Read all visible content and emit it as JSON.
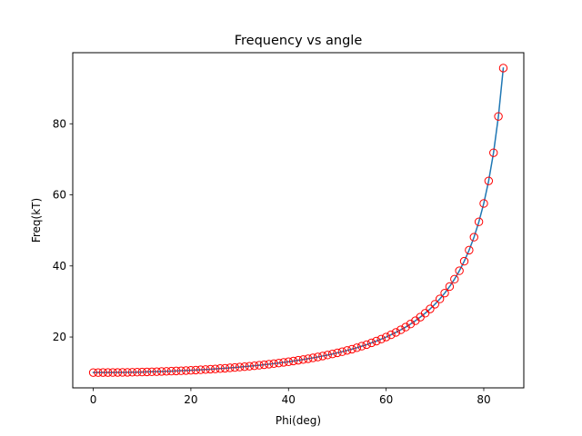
{
  "chart_data": {
    "type": "line",
    "title": "Frequency vs angle",
    "xlabel": "Phi(deg)",
    "ylabel": "Freq(kT)",
    "xlim": [
      -4.2,
      88.2
    ],
    "ylim": [
      5.7,
      100.0
    ],
    "xticks": [
      0,
      20,
      40,
      60,
      80
    ],
    "yticks": [
      20,
      40,
      60,
      80
    ],
    "grid": false,
    "series": [
      {
        "style": "line",
        "color": "#1f77b4",
        "x": [
          0,
          1,
          2,
          3,
          4,
          5,
          6,
          7,
          8,
          9,
          10,
          11,
          12,
          13,
          14,
          15,
          16,
          17,
          18,
          19,
          20,
          21,
          22,
          23,
          24,
          25,
          26,
          27,
          28,
          29,
          30,
          31,
          32,
          33,
          34,
          35,
          36,
          37,
          38,
          39,
          40,
          41,
          42,
          43,
          44,
          45,
          46,
          47,
          48,
          49,
          50,
          51,
          52,
          53,
          54,
          55,
          56,
          57,
          58,
          59,
          60,
          61,
          62,
          63,
          64,
          65,
          66,
          67,
          68,
          69,
          70,
          71,
          72,
          73,
          74,
          75,
          76,
          77,
          78,
          79,
          80,
          81,
          82,
          83,
          84
        ],
        "y": [
          10.0,
          10.0,
          10.01,
          10.01,
          10.02,
          10.04,
          10.05,
          10.07,
          10.1,
          10.12,
          10.15,
          10.19,
          10.22,
          10.26,
          10.31,
          10.35,
          10.4,
          10.46,
          10.51,
          10.58,
          10.64,
          10.71,
          10.79,
          10.87,
          10.95,
          11.03,
          11.13,
          11.22,
          11.33,
          11.43,
          11.55,
          11.66,
          11.79,
          11.92,
          12.06,
          12.21,
          12.36,
          12.52,
          12.69,
          12.87,
          13.05,
          13.25,
          13.46,
          13.67,
          13.9,
          14.14,
          14.39,
          14.66,
          14.94,
          15.23,
          15.56,
          15.87,
          16.23,
          16.59,
          16.99,
          17.43,
          17.86,
          18.36,
          18.86,
          19.42,
          20.0,
          20.63,
          21.3,
          22.03,
          22.8,
          23.66,
          24.59,
          25.6,
          26.7,
          27.9,
          29.24,
          30.72,
          32.36,
          34.2,
          36.28,
          38.64,
          41.33,
          44.45,
          48.1,
          52.41,
          57.59,
          63.92,
          71.85,
          82.07,
          95.67
        ]
      },
      {
        "style": "markers",
        "marker": "circle-open",
        "color": "#ff0000",
        "x": [
          0,
          1,
          2,
          3,
          4,
          5,
          6,
          7,
          8,
          9,
          10,
          11,
          12,
          13,
          14,
          15,
          16,
          17,
          18,
          19,
          20,
          21,
          22,
          23,
          24,
          25,
          26,
          27,
          28,
          29,
          30,
          31,
          32,
          33,
          34,
          35,
          36,
          37,
          38,
          39,
          40,
          41,
          42,
          43,
          44,
          45,
          46,
          47,
          48,
          49,
          50,
          51,
          52,
          53,
          54,
          55,
          56,
          57,
          58,
          59,
          60,
          61,
          62,
          63,
          64,
          65,
          66,
          67,
          68,
          69,
          70,
          71,
          72,
          73,
          74,
          75,
          76,
          77,
          78,
          79,
          80,
          81,
          82,
          83,
          84
        ],
        "y": [
          10.0,
          10.0,
          10.01,
          10.01,
          10.02,
          10.04,
          10.05,
          10.07,
          10.1,
          10.12,
          10.15,
          10.19,
          10.22,
          10.26,
          10.31,
          10.35,
          10.4,
          10.46,
          10.51,
          10.58,
          10.64,
          10.71,
          10.79,
          10.87,
          10.95,
          11.03,
          11.13,
          11.22,
          11.33,
          11.43,
          11.55,
          11.66,
          11.79,
          11.92,
          12.06,
          12.21,
          12.36,
          12.52,
          12.69,
          12.87,
          13.05,
          13.25,
          13.46,
          13.67,
          13.9,
          14.14,
          14.39,
          14.66,
          14.94,
          15.23,
          15.56,
          15.87,
          16.23,
          16.59,
          16.99,
          17.43,
          17.86,
          18.36,
          18.86,
          19.42,
          20.0,
          20.63,
          21.3,
          22.03,
          22.8,
          23.66,
          24.59,
          25.6,
          26.7,
          27.9,
          29.24,
          30.72,
          32.36,
          34.2,
          36.28,
          38.64,
          41.33,
          44.45,
          48.1,
          52.41,
          57.59,
          63.92,
          71.85,
          82.07,
          95.67
        ]
      }
    ]
  }
}
